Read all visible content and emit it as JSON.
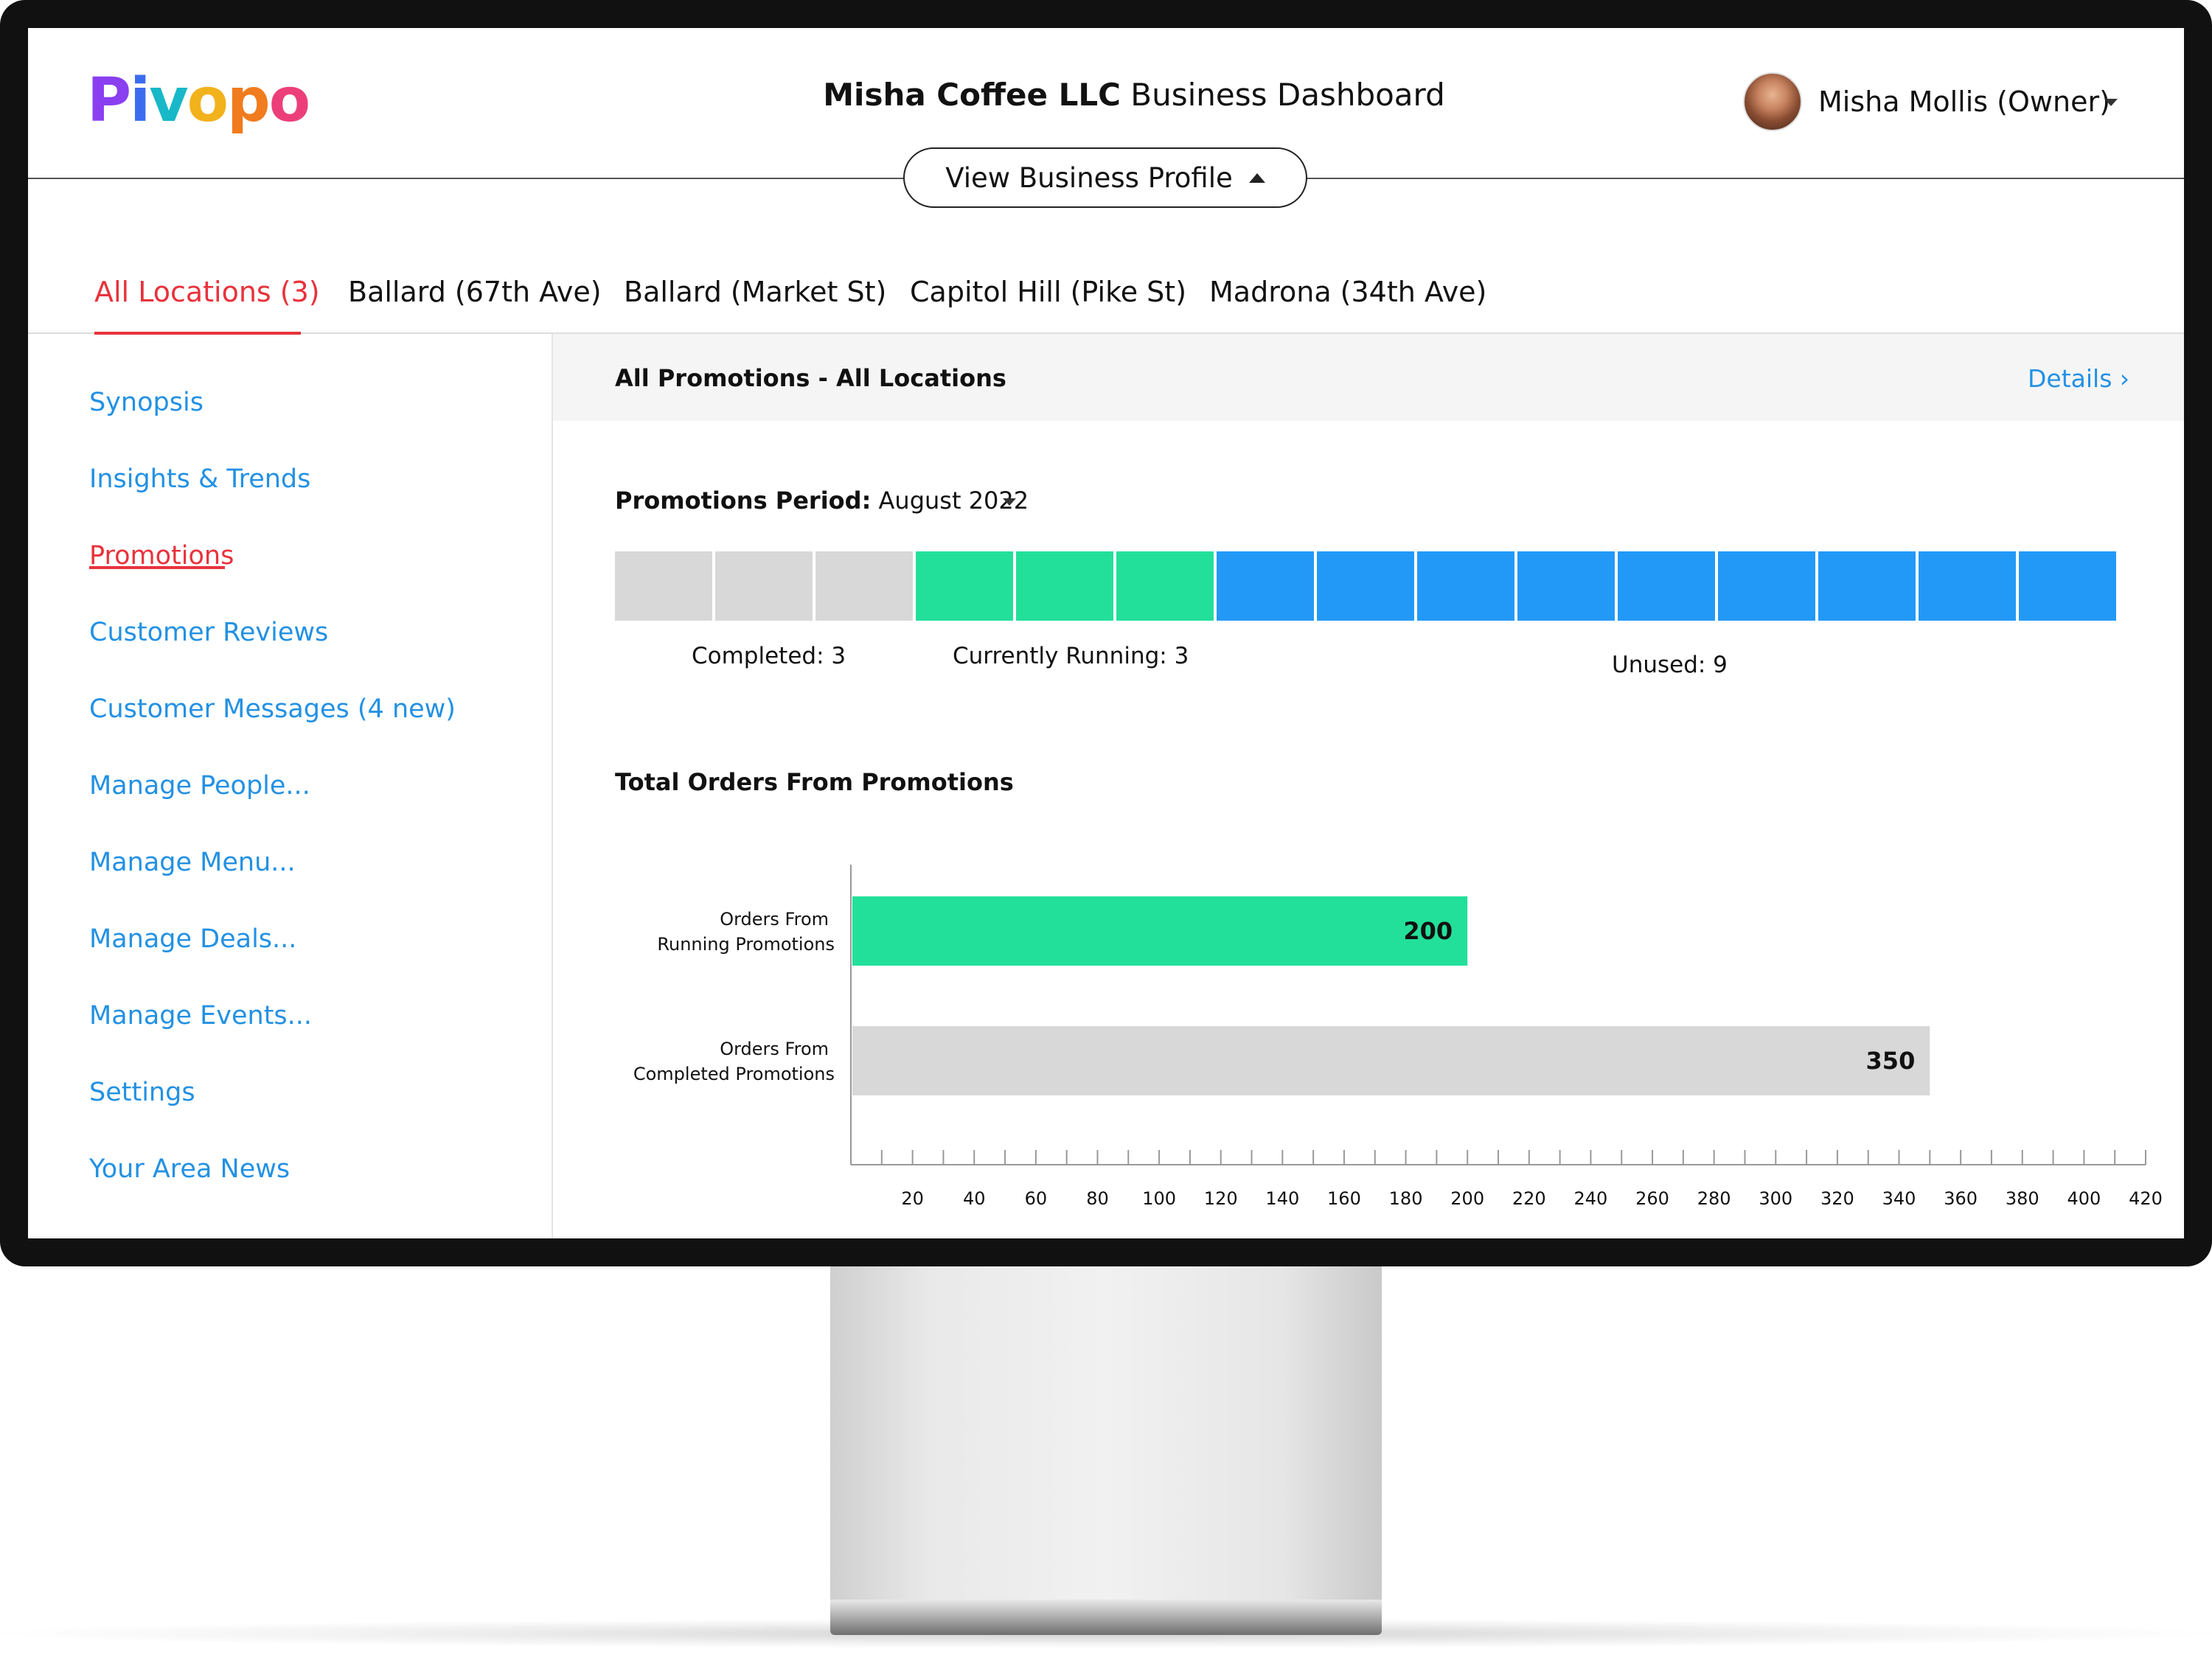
{
  "brand": {
    "logo_text": "Pivopo",
    "logo_letters": [
      "P",
      "i",
      "v",
      "o",
      "p",
      "o"
    ],
    "logo_colors": [
      "#8a3ff0",
      "#3b6cf0",
      "#18b8c8",
      "#f2b21c",
      "#f07c1e",
      "#ec3f7a"
    ]
  },
  "header": {
    "business_name": "Misha Coffee LLC",
    "title_suffix": " Business Dashboard",
    "profile_button": "View Business Profile",
    "user_name": "Misha Mollis (Owner)"
  },
  "tabs": [
    {
      "label": "All Locations (3)",
      "active": true
    },
    {
      "label": "Ballard (67th Ave)",
      "active": false
    },
    {
      "label": "Ballard (Market St)",
      "active": false
    },
    {
      "label": "Capitol Hill (Pike St)",
      "active": false
    },
    {
      "label": "Madrona (34th Ave)",
      "active": false
    }
  ],
  "sidebar": {
    "items": [
      {
        "label": "Synopsis",
        "active": false
      },
      {
        "label": "Insights & Trends",
        "active": false
      },
      {
        "label": "Promotions",
        "active": true
      },
      {
        "label": "Customer Reviews",
        "active": false
      },
      {
        "label": "Customer Messages (4 new)",
        "active": false
      },
      {
        "label": "Manage People...",
        "active": false
      },
      {
        "label": "Manage Menu...",
        "active": false
      },
      {
        "label": "Manage Deals...",
        "active": false
      },
      {
        "label": "Manage Events...",
        "active": false
      },
      {
        "label": "Settings",
        "active": false
      },
      {
        "label": "Your Area News",
        "active": false
      }
    ]
  },
  "main": {
    "title": "All Promotions - All Locations",
    "details_link": "Details ›",
    "period_label": "Promotions Period:",
    "period_value": " August 2022",
    "promotions": {
      "completed": {
        "label": "Completed: 3",
        "count": 3,
        "color": "#d8d8d8"
      },
      "running": {
        "label": "Currently Running: 3",
        "count": 3,
        "color": "#22e09a"
      },
      "unused": {
        "label": "Unused: 9",
        "count": 9,
        "color": "#2399f7"
      }
    },
    "orders_title": "Total Orders From Promotions"
  },
  "chart_data": {
    "type": "bar",
    "orientation": "horizontal",
    "title": "Total Orders From Promotions",
    "categories": [
      [
        "Orders From",
        "Running Promotions"
      ],
      [
        "Orders From",
        "Completed Promotions"
      ]
    ],
    "values": [
      200,
      350
    ],
    "colors": [
      "#22e09a",
      "#d8d8d8"
    ],
    "xlim": [
      0,
      420
    ],
    "ticks": [
      20,
      40,
      60,
      80,
      100,
      120,
      140,
      160,
      180,
      200,
      220,
      240,
      260,
      280,
      300,
      320,
      340,
      360,
      380,
      400,
      420
    ],
    "grid": false
  },
  "colors": {
    "accent_red": "#e8323c",
    "link_blue": "#2391e3"
  }
}
